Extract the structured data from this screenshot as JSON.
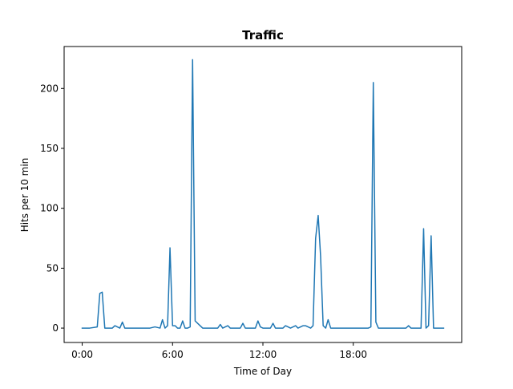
{
  "chart_data": {
    "type": "line",
    "title": "Traffic",
    "xlabel": "Time of Day",
    "ylabel": "Hits per 10 min",
    "xlim_hours": [
      -1.2,
      25.2
    ],
    "ylim": [
      -12,
      235
    ],
    "x_ticks": [
      {
        "value": 0,
        "label": "0:00"
      },
      {
        "value": 6,
        "label": "6:00"
      },
      {
        "value": 12,
        "label": "12:00"
      },
      {
        "value": 18,
        "label": "18:00"
      }
    ],
    "y_ticks": [
      {
        "value": 0,
        "label": "0"
      },
      {
        "value": 50,
        "label": "50"
      },
      {
        "value": 100,
        "label": "100"
      },
      {
        "value": 150,
        "label": "150"
      },
      {
        "value": 200,
        "label": "200"
      }
    ],
    "grid": false,
    "series": [
      {
        "color": "#1f77b4",
        "points": [
          [
            0,
            0
          ],
          [
            0.5,
            0
          ],
          [
            1.0,
            1
          ],
          [
            1.17,
            29
          ],
          [
            1.33,
            30
          ],
          [
            1.5,
            0
          ],
          [
            2.0,
            0
          ],
          [
            2.17,
            2
          ],
          [
            2.5,
            0
          ],
          [
            2.67,
            5
          ],
          [
            2.83,
            0
          ],
          [
            3.5,
            0
          ],
          [
            4.5,
            0
          ],
          [
            4.83,
            1
          ],
          [
            5.17,
            0
          ],
          [
            5.33,
            7
          ],
          [
            5.5,
            0
          ],
          [
            5.67,
            2
          ],
          [
            5.83,
            67
          ],
          [
            6.0,
            2
          ],
          [
            6.17,
            2
          ],
          [
            6.33,
            0
          ],
          [
            6.5,
            0
          ],
          [
            6.67,
            6
          ],
          [
            6.83,
            0
          ],
          [
            7.0,
            0
          ],
          [
            7.17,
            1
          ],
          [
            7.33,
            224
          ],
          [
            7.5,
            6
          ],
          [
            7.83,
            2
          ],
          [
            8.0,
            0
          ],
          [
            8.5,
            0
          ],
          [
            9.0,
            0
          ],
          [
            9.17,
            3
          ],
          [
            9.33,
            0
          ],
          [
            9.67,
            2
          ],
          [
            9.83,
            0
          ],
          [
            10.5,
            0
          ],
          [
            10.67,
            4
          ],
          [
            10.83,
            0
          ],
          [
            11.5,
            0
          ],
          [
            11.67,
            6
          ],
          [
            11.83,
            1
          ],
          [
            12.0,
            0
          ],
          [
            12.5,
            0
          ],
          [
            12.67,
            4
          ],
          [
            12.83,
            0
          ],
          [
            13.33,
            0
          ],
          [
            13.5,
            2
          ],
          [
            13.67,
            1
          ],
          [
            13.83,
            0
          ],
          [
            14.17,
            2
          ],
          [
            14.33,
            0
          ],
          [
            14.67,
            2
          ],
          [
            14.83,
            2
          ],
          [
            15.0,
            1
          ],
          [
            15.17,
            0
          ],
          [
            15.33,
            2
          ],
          [
            15.5,
            75
          ],
          [
            15.67,
            94
          ],
          [
            15.83,
            60
          ],
          [
            16.0,
            2
          ],
          [
            16.17,
            0
          ],
          [
            16.33,
            7
          ],
          [
            16.5,
            0
          ],
          [
            17.0,
            0
          ],
          [
            18.0,
            0
          ],
          [
            19.0,
            0
          ],
          [
            19.17,
            1
          ],
          [
            19.33,
            205
          ],
          [
            19.5,
            5
          ],
          [
            19.67,
            0
          ],
          [
            20.5,
            0
          ],
          [
            21.5,
            0
          ],
          [
            21.67,
            2
          ],
          [
            21.83,
            0
          ],
          [
            22.33,
            0
          ],
          [
            22.5,
            0
          ],
          [
            22.67,
            83
          ],
          [
            22.83,
            0
          ],
          [
            23.0,
            2
          ],
          [
            23.17,
            77
          ],
          [
            23.33,
            0
          ],
          [
            23.67,
            0
          ],
          [
            24.0,
            0
          ]
        ]
      }
    ]
  }
}
